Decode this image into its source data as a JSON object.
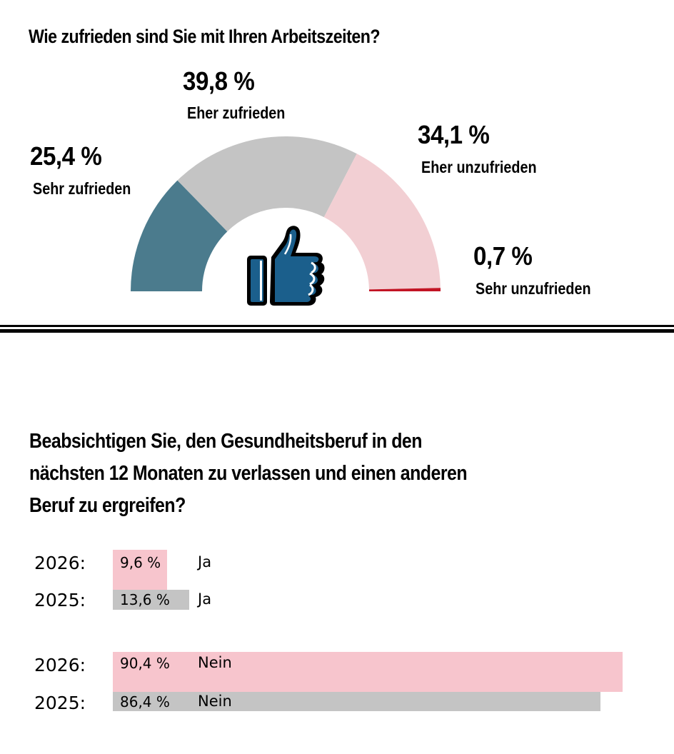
{
  "colors": {
    "sehr_zufrieden": "#4b7b8d",
    "eher_zufrieden": "#c4c4c4",
    "eher_unzufrieden": "#f2cfd3",
    "sehr_unzufrieden": "#c21424",
    "thumb_fill": "#1b5f8c",
    "bar_2026": "#f7c5cd",
    "bar_2025": "#c4c4c4"
  },
  "chart_data": [
    {
      "type": "pie",
      "variant": "half-donut gauge",
      "title": "Wie zufrieden sind Sie mit Ihren Arbeitszeiten?",
      "center_icon": "thumbs-up-icon",
      "slices": [
        {
          "label": "Sehr zufrieden",
          "value": 25.4,
          "display": "25,4 %"
        },
        {
          "label": "Eher zufrieden",
          "value": 39.8,
          "display": "39,8 %"
        },
        {
          "label": "Eher unzufrieden",
          "value": 34.1,
          "display": "34,1 %"
        },
        {
          "label": "Sehr unzufrieden",
          "value": 0.7,
          "display": "0,7 %"
        }
      ]
    },
    {
      "type": "bar",
      "orientation": "horizontal",
      "title": "Beabsichtigen Sie, den Gesundheitsberuf in den nächsten 12 Monaten zu verlassen und einen anderen Beruf zu ergreifen?",
      "title_lines": [
        "Beabsichtigen Sie, den Gesundheitsberuf in den",
        "nächsten 12 Monaten zu verlassen und einen anderen",
        "Beruf zu ergreifen?"
      ],
      "xlim": [
        0,
        100
      ],
      "groups": [
        {
          "answer": "Ja",
          "rows": [
            {
              "year": "2026:",
              "value": 9.6,
              "display": "9,6 %"
            },
            {
              "year": "2025:",
              "value": 13.6,
              "display": "13,6 %"
            }
          ]
        },
        {
          "answer": "Nein",
          "rows": [
            {
              "year": "2026:",
              "value": 90.4,
              "display": "90,4 %"
            },
            {
              "year": "2025:",
              "value": 86.4,
              "display": "86,4 %"
            }
          ]
        }
      ]
    }
  ]
}
